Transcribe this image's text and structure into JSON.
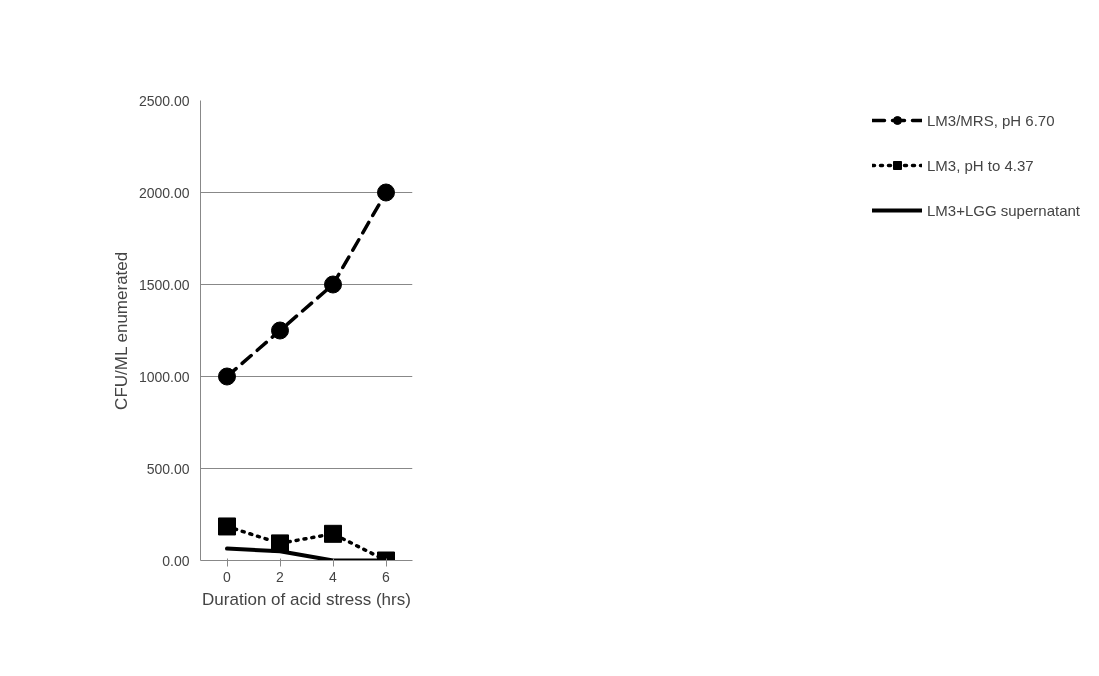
{
  "chart_data": {
    "type": "line",
    "xlabel": "Duration of acid stress (hrs)",
    "ylabel": "CFU/ML enumerated",
    "categories": [
      "0",
      "2",
      "4",
      "6"
    ],
    "ylim": [
      0,
      2500
    ],
    "yticks": [
      {
        "value": 0,
        "label": "0.00"
      },
      {
        "value": 500,
        "label": "500.00"
      },
      {
        "value": 1000,
        "label": "1000.00"
      },
      {
        "value": 1500,
        "label": "1500.00"
      },
      {
        "value": 2000,
        "label": "2000.00"
      },
      {
        "value": 2500,
        "label": "2500.00"
      }
    ],
    "grid": "y",
    "legend": "right",
    "series": [
      {
        "name": "LM3/MRS, pH 6.70",
        "color": "#000000",
        "values": [
          1000,
          1250,
          1500,
          2000
        ],
        "marker": "circle",
        "line_style": "dashed"
      },
      {
        "name": "LM3, pH to 4.37",
        "color": "#000000",
        "values": [
          185,
          93,
          145,
          0
        ],
        "marker": "square",
        "line_style": "dotted"
      },
      {
        "name": "LM3+LGG supernatant",
        "color": "#000000",
        "values": [
          65,
          50,
          0,
          0
        ],
        "marker": "none",
        "line_style": "solid"
      }
    ]
  }
}
